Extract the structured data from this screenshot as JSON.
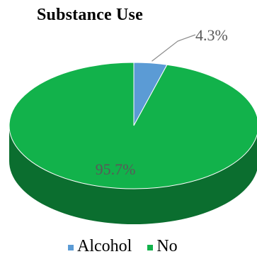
{
  "chart_data": {
    "type": "pie",
    "title": "Substance Use",
    "series": [
      {
        "slices": [
          {
            "label": "Alcohol",
            "value": 4.3,
            "data_label": "4.3%",
            "color": "#5b9bd5"
          },
          {
            "label": "No",
            "value": 95.7,
            "data_label": "95.7%",
            "color": "#12b24b"
          }
        ]
      }
    ],
    "legend_position": "bottom",
    "style": "3d"
  },
  "legend": {
    "items": [
      {
        "label": "Alcohol",
        "color": "#5b9bd5"
      },
      {
        "label": "No",
        "color": "#12b24b"
      }
    ]
  }
}
